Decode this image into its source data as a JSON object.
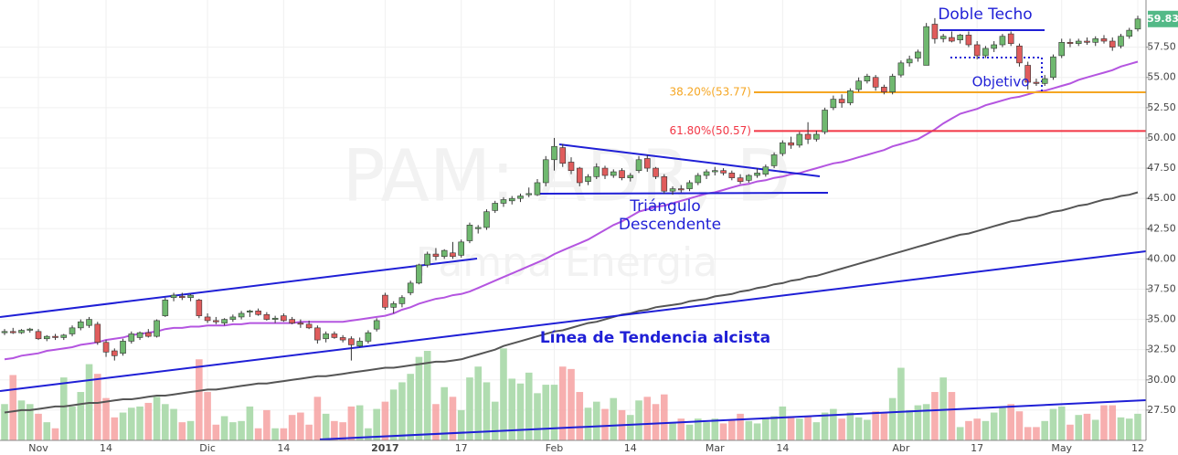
{
  "chart_data": {
    "type": "candlestick",
    "watermark": [
      "PAM: ADR, D",
      "Pampa Energia"
    ],
    "categories": [
      null,
      null,
      null,
      null,
      "Nov",
      null,
      null,
      null,
      null,
      null,
      null,
      null,
      "14",
      null,
      null,
      null,
      null,
      null,
      null,
      null,
      null,
      null,
      null,
      null,
      "Dic",
      null,
      null,
      null,
      null,
      null,
      null,
      null,
      null,
      "14",
      null,
      null,
      null,
      null,
      null,
      null,
      null,
      null,
      null,
      null,
      null,
      "2017",
      null,
      null,
      null,
      null,
      null,
      null,
      null,
      null,
      "17",
      null,
      null,
      null,
      null,
      null,
      null,
      null,
      null,
      null,
      null,
      "Feb",
      null,
      null,
      null,
      null,
      null,
      null,
      null,
      null,
      "14",
      null,
      null,
      null,
      null,
      null,
      null,
      null,
      null,
      null,
      "Mar",
      null,
      null,
      null,
      null,
      null,
      null,
      null,
      "14",
      null,
      null,
      null,
      null,
      null,
      null,
      null,
      null,
      null,
      null,
      null,
      null,
      null,
      "Abr",
      null,
      null,
      null,
      null,
      null,
      null,
      null,
      null,
      "17",
      null,
      null,
      null,
      null,
      null,
      null,
      null,
      null,
      null,
      "May",
      null,
      null,
      null,
      null,
      null,
      null,
      null,
      null,
      "12"
    ],
    "ohlc": [
      [
        33.9,
        34.2,
        33.7,
        34.0
      ],
      [
        34.0,
        34.3,
        33.8,
        33.9
      ],
      [
        33.9,
        34.2,
        33.8,
        34.1
      ],
      [
        34.1,
        34.3,
        33.9,
        34.2
      ],
      [
        34.0,
        34.2,
        33.3,
        33.4
      ],
      [
        33.4,
        33.7,
        33.2,
        33.6
      ],
      [
        33.6,
        33.8,
        33.3,
        33.5
      ],
      [
        33.5,
        33.8,
        33.3,
        33.7
      ],
      [
        33.8,
        34.5,
        33.6,
        34.3
      ],
      [
        34.3,
        35.0,
        34.1,
        34.8
      ],
      [
        34.5,
        35.2,
        34.3,
        35.0
      ],
      [
        34.6,
        34.8,
        32.9,
        33.1
      ],
      [
        33.1,
        33.3,
        31.9,
        32.3
      ],
      [
        32.4,
        32.6,
        31.6,
        32.0
      ],
      [
        32.2,
        33.4,
        32.0,
        33.2
      ],
      [
        33.2,
        34.0,
        33.0,
        33.8
      ],
      [
        33.5,
        34.0,
        33.3,
        33.9
      ],
      [
        33.9,
        34.2,
        33.5,
        33.6
      ],
      [
        33.6,
        35.0,
        33.5,
        34.9
      ],
      [
        35.3,
        36.8,
        35.2,
        36.6
      ],
      [
        36.8,
        37.2,
        36.5,
        37.0
      ],
      [
        36.9,
        37.2,
        36.6,
        36.8
      ],
      [
        36.8,
        37.1,
        36.5,
        37.0
      ],
      [
        36.6,
        36.7,
        35.1,
        35.3
      ],
      [
        35.2,
        35.5,
        34.7,
        34.9
      ],
      [
        34.9,
        35.2,
        34.6,
        34.8
      ],
      [
        34.7,
        35.1,
        34.5,
        35.0
      ],
      [
        35.0,
        35.4,
        34.8,
        35.2
      ],
      [
        35.2,
        35.7,
        35.0,
        35.5
      ],
      [
        35.6,
        35.8,
        35.2,
        35.7
      ],
      [
        35.7,
        35.9,
        35.3,
        35.4
      ],
      [
        35.4,
        35.6,
        34.9,
        35.0
      ],
      [
        35.0,
        35.3,
        34.7,
        35.1
      ],
      [
        35.3,
        35.5,
        34.8,
        34.9
      ],
      [
        35.0,
        35.2,
        34.6,
        34.7
      ],
      [
        34.7,
        35.0,
        34.3,
        34.6
      ],
      [
        34.6,
        34.9,
        34.2,
        34.3
      ],
      [
        34.3,
        34.5,
        33.0,
        33.3
      ],
      [
        33.4,
        34.0,
        33.1,
        33.8
      ],
      [
        33.8,
        34.0,
        33.4,
        33.5
      ],
      [
        33.5,
        33.7,
        33.1,
        33.3
      ],
      [
        33.4,
        33.6,
        31.6,
        32.9
      ],
      [
        32.8,
        33.5,
        32.7,
        33.2
      ],
      [
        33.2,
        34.1,
        33.0,
        33.9
      ],
      [
        34.2,
        35.1,
        34.0,
        34.9
      ],
      [
        37.0,
        37.2,
        35.8,
        36.0
      ],
      [
        36.0,
        36.5,
        35.5,
        36.3
      ],
      [
        36.3,
        37.0,
        36.0,
        36.8
      ],
      [
        37.2,
        38.2,
        37.0,
        38.0
      ],
      [
        38.0,
        39.6,
        37.9,
        39.5
      ],
      [
        39.5,
        40.6,
        39.3,
        40.4
      ],
      [
        40.4,
        40.9,
        39.9,
        40.2
      ],
      [
        40.2,
        40.8,
        40.0,
        40.7
      ],
      [
        40.5,
        41.4,
        40.0,
        40.2
      ],
      [
        40.3,
        41.6,
        40.1,
        41.4
      ],
      [
        41.5,
        43.0,
        41.3,
        42.8
      ],
      [
        42.5,
        42.8,
        42.1,
        42.6
      ],
      [
        42.6,
        44.1,
        42.4,
        43.9
      ],
      [
        44.0,
        44.8,
        43.8,
        44.6
      ],
      [
        44.6,
        45.1,
        44.3,
        44.9
      ],
      [
        44.8,
        45.2,
        44.5,
        45.0
      ],
      [
        45.0,
        45.4,
        44.7,
        45.2
      ],
      [
        45.3,
        45.9,
        45.1,
        45.4
      ],
      [
        45.3,
        46.6,
        45.2,
        46.3
      ],
      [
        46.3,
        48.5,
        46.0,
        48.2
      ],
      [
        48.2,
        50.0,
        47.3,
        49.3
      ],
      [
        49.2,
        49.5,
        47.6,
        47.9
      ],
      [
        48.0,
        48.4,
        47.0,
        47.3
      ],
      [
        47.5,
        47.6,
        46.0,
        46.3
      ],
      [
        46.4,
        47.0,
        46.1,
        46.8
      ],
      [
        46.8,
        47.9,
        46.6,
        47.6
      ],
      [
        47.5,
        47.7,
        46.6,
        46.9
      ],
      [
        46.9,
        47.4,
        46.7,
        47.2
      ],
      [
        47.3,
        47.5,
        46.5,
        46.7
      ],
      [
        46.7,
        47.1,
        46.4,
        46.9
      ],
      [
        47.3,
        48.5,
        47.1,
        48.2
      ],
      [
        48.3,
        48.6,
        47.2,
        47.5
      ],
      [
        47.5,
        47.6,
        46.6,
        46.8
      ],
      [
        46.8,
        47.0,
        45.4,
        45.6
      ],
      [
        45.6,
        46.0,
        45.3,
        45.8
      ],
      [
        45.8,
        46.1,
        45.5,
        45.7
      ],
      [
        45.8,
        46.5,
        45.6,
        46.3
      ],
      [
        46.3,
        47.1,
        46.1,
        46.9
      ],
      [
        46.9,
        47.4,
        46.6,
        47.2
      ],
      [
        47.2,
        47.6,
        46.9,
        47.3
      ],
      [
        47.3,
        47.5,
        46.9,
        47.1
      ],
      [
        47.1,
        47.3,
        46.5,
        46.7
      ],
      [
        46.7,
        47.0,
        46.2,
        46.4
      ],
      [
        46.5,
        47.0,
        46.3,
        46.9
      ],
      [
        46.9,
        47.5,
        46.7,
        47.1
      ],
      [
        47.0,
        47.8,
        46.8,
        47.6
      ],
      [
        47.7,
        48.8,
        47.5,
        48.6
      ],
      [
        48.7,
        49.8,
        48.5,
        49.6
      ],
      [
        49.6,
        50.1,
        49.1,
        49.4
      ],
      [
        49.4,
        50.5,
        49.2,
        50.3
      ],
      [
        50.3,
        51.3,
        49.5,
        49.9
      ],
      [
        49.9,
        50.6,
        49.7,
        50.3
      ],
      [
        50.5,
        52.5,
        50.3,
        52.3
      ],
      [
        52.5,
        53.5,
        52.3,
        53.2
      ],
      [
        53.2,
        53.6,
        52.5,
        52.9
      ],
      [
        52.9,
        54.1,
        52.7,
        53.9
      ],
      [
        54.0,
        55.0,
        53.8,
        54.7
      ],
      [
        54.7,
        55.3,
        54.5,
        55.1
      ],
      [
        55.0,
        55.2,
        53.9,
        54.2
      ],
      [
        54.2,
        54.4,
        53.6,
        53.8
      ],
      [
        53.8,
        55.3,
        53.6,
        55.1
      ],
      [
        55.2,
        56.4,
        55.0,
        56.2
      ],
      [
        56.2,
        56.8,
        55.9,
        56.5
      ],
      [
        56.6,
        57.3,
        56.3,
        57.1
      ],
      [
        56.0,
        59.5,
        56.0,
        59.2
      ],
      [
        59.4,
        59.9,
        57.8,
        58.2
      ],
      [
        58.2,
        58.6,
        57.9,
        58.4
      ],
      [
        58.3,
        58.8,
        57.9,
        58.0
      ],
      [
        58.1,
        58.6,
        57.8,
        58.5
      ],
      [
        58.5,
        58.8,
        57.5,
        57.7
      ],
      [
        57.7,
        58.0,
        56.5,
        56.8
      ],
      [
        56.8,
        57.6,
        56.6,
        57.4
      ],
      [
        57.4,
        58.0,
        57.1,
        57.7
      ],
      [
        57.7,
        58.6,
        57.5,
        58.4
      ],
      [
        58.6,
        58.8,
        57.6,
        57.8
      ],
      [
        57.6,
        57.8,
        55.9,
        56.2
      ],
      [
        56.0,
        56.3,
        54.0,
        54.6
      ],
      [
        54.6,
        54.9,
        54.3,
        54.5
      ],
      [
        54.5,
        55.2,
        54.3,
        54.9
      ],
      [
        55.0,
        56.9,
        54.8,
        56.7
      ],
      [
        56.8,
        58.2,
        56.6,
        57.9
      ],
      [
        57.9,
        58.2,
        57.5,
        57.8
      ],
      [
        57.8,
        58.2,
        57.6,
        58.0
      ],
      [
        58.0,
        58.3,
        57.7,
        57.9
      ],
      [
        57.9,
        58.4,
        57.6,
        58.2
      ],
      [
        58.2,
        58.5,
        57.8,
        58.0
      ],
      [
        58.0,
        58.3,
        57.2,
        57.5
      ],
      [
        57.6,
        58.6,
        57.4,
        58.4
      ],
      [
        58.4,
        59.1,
        58.2,
        58.9
      ],
      [
        59.0,
        60.1,
        58.8,
        59.83
      ]
    ],
    "up_color": "#6fb86f",
    "down_color": "#e05c5c",
    "wick_color": "#333333",
    "volume": {
      "up_color": "#a7d8a7",
      "down_color": "#f6a6a6",
      "values": [
        28.0,
        30.4,
        28.3,
        28.0,
        27.2,
        26.5,
        26.0,
        30.2,
        27.8,
        29.0,
        31.3,
        30.5,
        28.5,
        26.9,
        27.3,
        27.7,
        27.8,
        28.1,
        28.6,
        28.0,
        27.6,
        26.5,
        26.6,
        31.7,
        29.0,
        26.3,
        27.0,
        26.5,
        26.6,
        27.8,
        26.0,
        27.5,
        26.0,
        26.0,
        27.1,
        27.3,
        26.3,
        28.6,
        27.2,
        26.6,
        26.5,
        27.8,
        27.9,
        26.0,
        27.6,
        28.2,
        29.2,
        29.8,
        30.5,
        31.9,
        32.4,
        28.0,
        29.4,
        28.6,
        27.5,
        30.2,
        31.1,
        29.8,
        28.2,
        32.6,
        30.1,
        29.7,
        30.6,
        28.9,
        29.6,
        29.6,
        31.1,
        30.9,
        29.0,
        27.7,
        28.2,
        27.6,
        28.5,
        27.5,
        27.1,
        28.3,
        28.6,
        28.0,
        28.8,
        26.4,
        26.8,
        26.3,
        26.8,
        26.5,
        26.8,
        26.4,
        26.7,
        27.2,
        26.6,
        26.4,
        26.9,
        27.0,
        27.8,
        27.0,
        26.8,
        27.0,
        26.5,
        27.3,
        27.6,
        26.8,
        27.3,
        26.9,
        26.7,
        27.4,
        27.3,
        28.5,
        31.0,
        27.5,
        27.9,
        28.0,
        29.0,
        30.2,
        29.0,
        26.1,
        26.6,
        26.8,
        26.6,
        27.3,
        27.7,
        28.0,
        27.4,
        26.1,
        26.1,
        26.6,
        27.6,
        27.8,
        26.3,
        27.1,
        27.2,
        26.7,
        27.9,
        27.9,
        26.9,
        26.8,
        27.2
      ]
    },
    "moving_averages": [
      {
        "color": "#b455e0",
        "values": [
          31.7,
          31.8,
          32.0,
          32.1,
          32.2,
          32.4,
          32.5,
          32.6,
          32.7,
          32.9,
          33.0,
          33.1,
          33.3,
          33.4,
          33.5,
          33.7,
          33.8,
          33.9,
          34.0,
          34.2,
          34.3,
          34.3,
          34.4,
          34.4,
          34.5,
          34.5,
          34.5,
          34.6,
          34.6,
          34.7,
          34.7,
          34.7,
          34.7,
          34.7,
          34.7,
          34.8,
          34.8,
          34.8,
          34.8,
          34.8,
          34.8,
          34.9,
          35.0,
          35.1,
          35.2,
          35.3,
          35.5,
          35.8,
          36.0,
          36.3,
          36.5,
          36.7,
          36.8,
          37.0,
          37.1,
          37.3,
          37.6,
          37.9,
          38.2,
          38.5,
          38.8,
          39.1,
          39.4,
          39.7,
          40.0,
          40.4,
          40.7,
          41.0,
          41.3,
          41.6,
          42.0,
          42.4,
          42.8,
          43.1,
          43.5,
          43.9,
          44.1,
          44.3,
          44.4,
          44.6,
          44.8,
          45.0,
          45.2,
          45.4,
          45.5,
          45.7,
          45.9,
          46.1,
          46.2,
          46.4,
          46.5,
          46.7,
          46.8,
          47.0,
          47.1,
          47.3,
          47.5,
          47.7,
          47.9,
          48.0,
          48.2,
          48.4,
          48.6,
          48.8,
          49.0,
          49.3,
          49.5,
          49.7,
          49.9,
          50.3,
          50.7,
          51.2,
          51.6,
          52.0,
          52.2,
          52.4,
          52.7,
          52.9,
          53.1,
          53.3,
          53.4,
          53.6,
          53.8,
          53.9,
          54.1,
          54.3,
          54.5,
          54.8,
          55.0,
          55.2,
          55.4,
          55.6,
          55.9,
          56.1,
          56.3
        ]
      },
      {
        "color": "#555555",
        "values": [
          27.3,
          27.4,
          27.5,
          27.5,
          27.6,
          27.7,
          27.8,
          27.8,
          27.9,
          28.0,
          28.1,
          28.1,
          28.2,
          28.3,
          28.4,
          28.4,
          28.5,
          28.6,
          28.7,
          28.7,
          28.8,
          28.9,
          29.0,
          29.1,
          29.2,
          29.2,
          29.3,
          29.4,
          29.5,
          29.6,
          29.7,
          29.7,
          29.8,
          29.9,
          30.0,
          30.1,
          30.2,
          30.3,
          30.3,
          30.4,
          30.5,
          30.6,
          30.7,
          30.8,
          30.9,
          31.0,
          31.0,
          31.1,
          31.2,
          31.3,
          31.4,
          31.5,
          31.5,
          31.6,
          31.7,
          31.9,
          32.1,
          32.3,
          32.5,
          32.8,
          33.0,
          33.2,
          33.4,
          33.6,
          33.8,
          34.0,
          34.1,
          34.3,
          34.5,
          34.7,
          34.8,
          35.0,
          35.2,
          35.4,
          35.5,
          35.7,
          35.8,
          36.0,
          36.1,
          36.2,
          36.3,
          36.5,
          36.6,
          36.7,
          36.9,
          37.0,
          37.1,
          37.3,
          37.4,
          37.6,
          37.7,
          37.9,
          38.0,
          38.2,
          38.3,
          38.5,
          38.6,
          38.8,
          39.0,
          39.2,
          39.4,
          39.6,
          39.8,
          40.0,
          40.2,
          40.4,
          40.6,
          40.8,
          41.0,
          41.2,
          41.4,
          41.6,
          41.8,
          42.0,
          42.1,
          42.3,
          42.5,
          42.7,
          42.9,
          43.1,
          43.2,
          43.4,
          43.5,
          43.7,
          43.9,
          44.0,
          44.2,
          44.4,
          44.5,
          44.7,
          44.9,
          45.0,
          45.2,
          45.3,
          45.5
        ]
      }
    ],
    "ylim": [
      25.0,
      61.4
    ],
    "yticks": [
      {
        "value": 27.5,
        "label": "27.50"
      },
      {
        "value": 30,
        "label": "30.00"
      },
      {
        "value": 32.5,
        "label": "32.50"
      },
      {
        "value": 35,
        "label": "35.00"
      },
      {
        "value": 37.5,
        "label": "37.50"
      },
      {
        "value": 40,
        "label": "40.00"
      },
      {
        "value": 42.5,
        "label": "42.50"
      },
      {
        "value": 45,
        "label": "45.00"
      },
      {
        "value": 47.5,
        "label": "47.50"
      },
      {
        "value": 50,
        "label": "50.00"
      },
      {
        "value": 52.5,
        "label": "52.50"
      },
      {
        "value": 55,
        "label": "55.00"
      },
      {
        "value": 57.5,
        "label": "57.50"
      }
    ],
    "grid": true,
    "last_price": {
      "value": 59.83,
      "label": "59.83",
      "color": "#53b987"
    },
    "fibonacci": [
      {
        "value": 53.77,
        "label": "38.20%(53.77)",
        "color": "#f5a623"
      },
      {
        "value": 50.57,
        "label": "61.80%(50.57)",
        "color": "#f23645"
      }
    ],
    "annotations": [
      "Doble Techo",
      "Objetivo",
      "Triángulo",
      "Descendente",
      "Línea de Tendencia alcista"
    ]
  }
}
